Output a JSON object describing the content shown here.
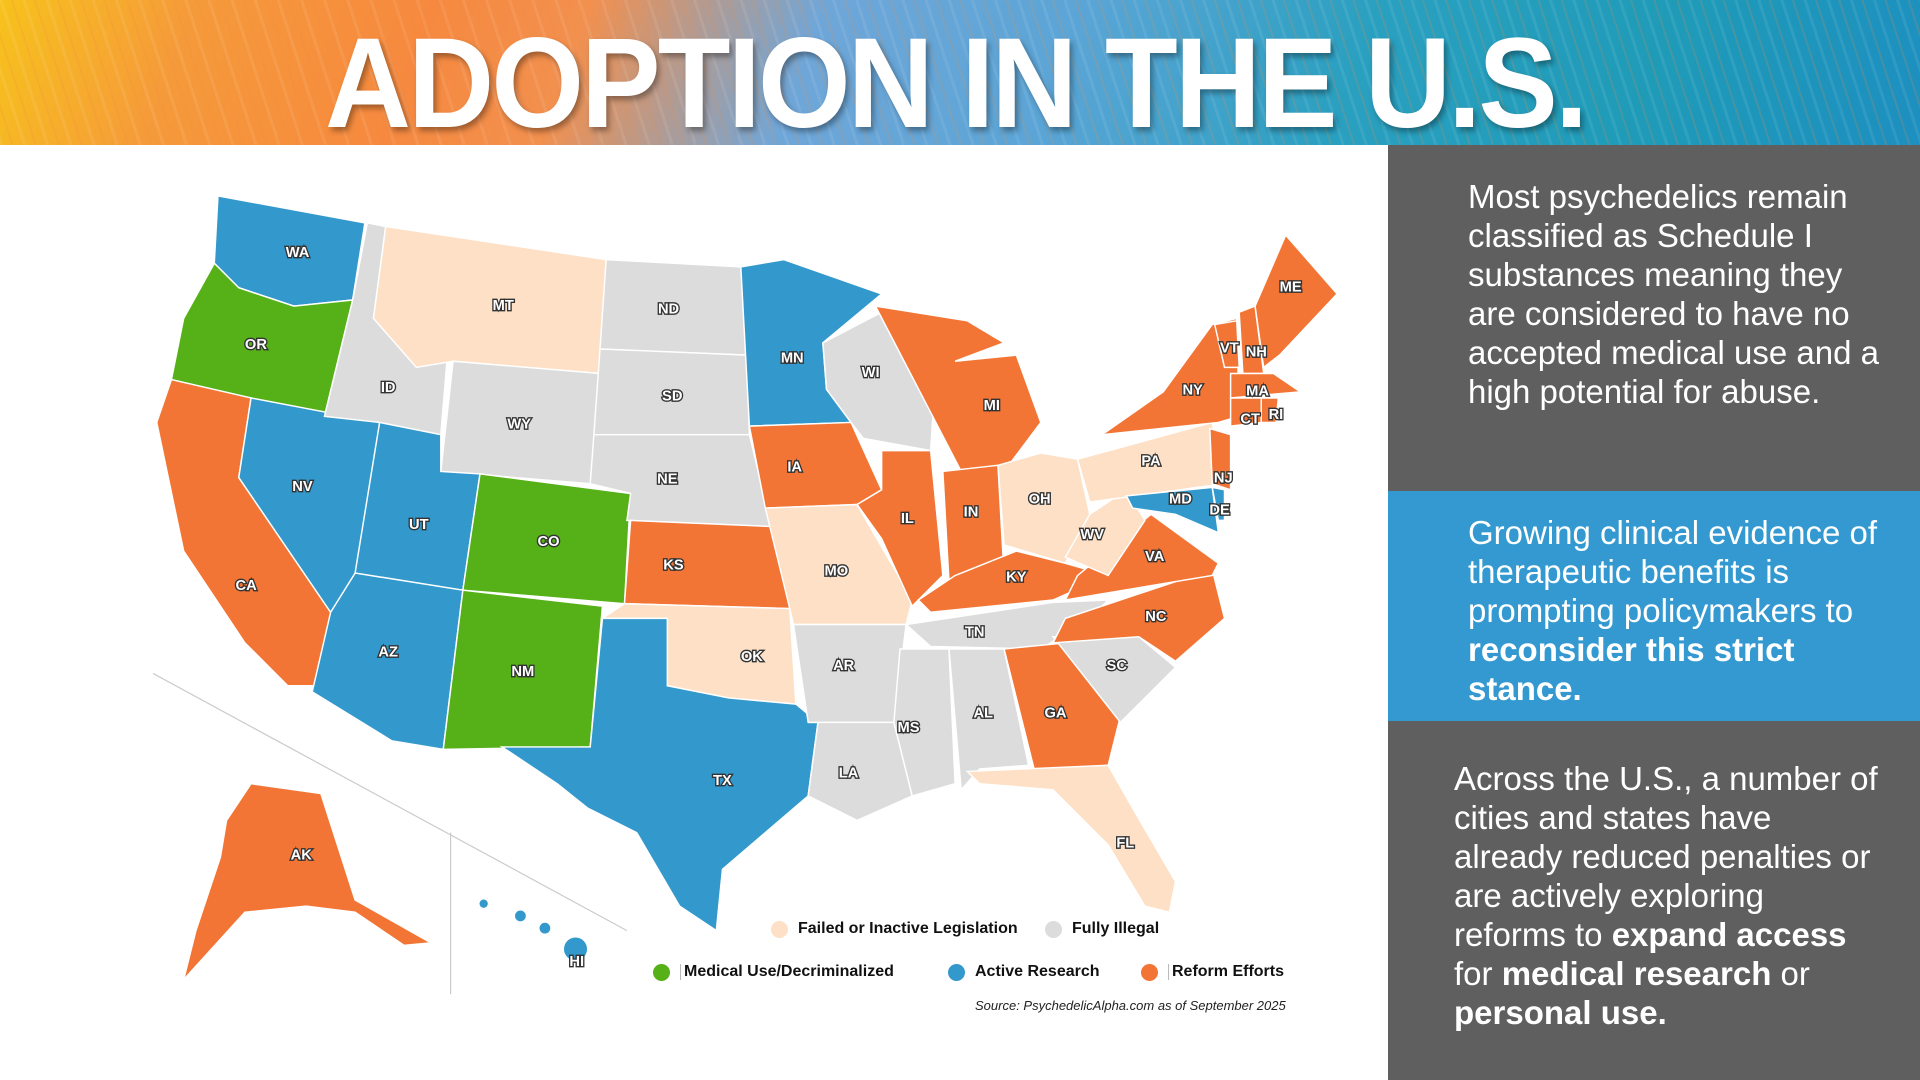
{
  "header": {
    "title": "ADOPTION IN THE U.S."
  },
  "colors": {
    "medical": "#55b117",
    "research": "#3399cc",
    "reform": "#f27535",
    "failed": "#fde0c5",
    "illegal": "#dcdcdc",
    "panel_gray": "#5f5f5f",
    "panel_blue": "#3399d0"
  },
  "legend": {
    "failed": "Failed or Inactive Legislation",
    "illegal": "Fully Illegal",
    "medical": "Medical Use/Decriminalized",
    "research": "Active Research",
    "reform": "Reform Efforts"
  },
  "source": "Source: PsychedelicAlpha.com as of September 2025",
  "states": [
    {
      "abbr": "WA",
      "status": "research"
    },
    {
      "abbr": "OR",
      "status": "medical"
    },
    {
      "abbr": "CA",
      "status": "reform"
    },
    {
      "abbr": "NV",
      "status": "research"
    },
    {
      "abbr": "ID",
      "status": "illegal"
    },
    {
      "abbr": "MT",
      "status": "failed"
    },
    {
      "abbr": "WY",
      "status": "illegal"
    },
    {
      "abbr": "UT",
      "status": "research"
    },
    {
      "abbr": "AZ",
      "status": "research"
    },
    {
      "abbr": "CO",
      "status": "medical"
    },
    {
      "abbr": "NM",
      "status": "medical"
    },
    {
      "abbr": "ND",
      "status": "illegal"
    },
    {
      "abbr": "SD",
      "status": "illegal"
    },
    {
      "abbr": "NE",
      "status": "illegal"
    },
    {
      "abbr": "KS",
      "status": "reform"
    },
    {
      "abbr": "OK",
      "status": "failed"
    },
    {
      "abbr": "TX",
      "status": "research"
    },
    {
      "abbr": "MN",
      "status": "research"
    },
    {
      "abbr": "IA",
      "status": "reform"
    },
    {
      "abbr": "MO",
      "status": "failed"
    },
    {
      "abbr": "AR",
      "status": "illegal"
    },
    {
      "abbr": "LA",
      "status": "illegal"
    },
    {
      "abbr": "WI",
      "status": "illegal"
    },
    {
      "abbr": "IL",
      "status": "reform"
    },
    {
      "abbr": "MI",
      "status": "reform"
    },
    {
      "abbr": "IN",
      "status": "reform"
    },
    {
      "abbr": "OH",
      "status": "failed"
    },
    {
      "abbr": "KY",
      "status": "reform"
    },
    {
      "abbr": "TN",
      "status": "illegal"
    },
    {
      "abbr": "MS",
      "status": "illegal"
    },
    {
      "abbr": "AL",
      "status": "illegal"
    },
    {
      "abbr": "GA",
      "status": "reform"
    },
    {
      "abbr": "FL",
      "status": "failed"
    },
    {
      "abbr": "SC",
      "status": "illegal"
    },
    {
      "abbr": "NC",
      "status": "reform"
    },
    {
      "abbr": "VA",
      "status": "reform"
    },
    {
      "abbr": "WV",
      "status": "failed"
    },
    {
      "abbr": "PA",
      "status": "failed"
    },
    {
      "abbr": "NY",
      "status": "reform"
    },
    {
      "abbr": "VT",
      "status": "reform"
    },
    {
      "abbr": "NH",
      "status": "reform"
    },
    {
      "abbr": "ME",
      "status": "reform"
    },
    {
      "abbr": "MA",
      "status": "reform"
    },
    {
      "abbr": "CT",
      "status": "reform"
    },
    {
      "abbr": "RI",
      "status": "reform"
    },
    {
      "abbr": "NJ",
      "status": "reform"
    },
    {
      "abbr": "MD",
      "status": "research"
    },
    {
      "abbr": "DE",
      "status": "research"
    },
    {
      "abbr": "AK",
      "status": "reform"
    },
    {
      "abbr": "HI",
      "status": "research"
    }
  ],
  "panels": {
    "p1": "Most psychedelics remain classified as Schedule I substances meaning they are considered to have no accepted medical use and a high potential for abuse.",
    "p2": {
      "t1": "Growing clinical evidence of therapeutic benefits is prompting policymakers to ",
      "b1": "reconsider this strict stance."
    },
    "p3": {
      "t1": "Across the U.S., a number of cities and states have already reduced penalties or are actively exploring reforms to ",
      "b1": "expand access",
      "t2": " for ",
      "b2": "medical research",
      "t3": " or ",
      "b3": "personal use."
    }
  }
}
